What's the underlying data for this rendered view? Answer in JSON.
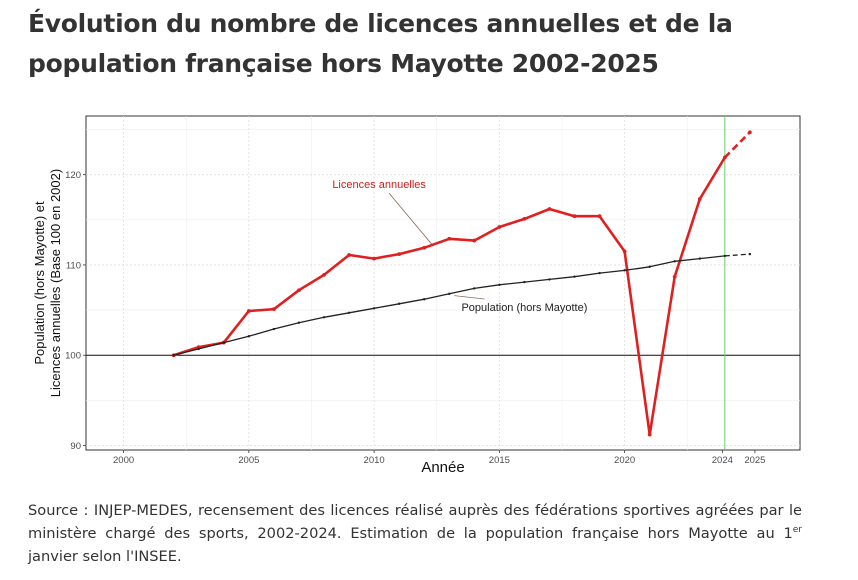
{
  "title": "Évolution du nombre de licences annuelles et de la population française hors Mayotte 2002-2025",
  "chart_data": {
    "type": "line",
    "xlabel": "Année",
    "ylabel_line1": "Population (hors Mayotte) et",
    "ylabel_line2": "Licences annuelles (Base 100 en 2002)",
    "xlim": [
      1998.5,
      2027
    ],
    "ylim": [
      89.5,
      126.5
    ],
    "x_ticks": [
      {
        "value": 2000,
        "label": "2000"
      },
      {
        "value": 2005,
        "label": "2005"
      },
      {
        "value": 2010,
        "label": "2010"
      },
      {
        "value": 2015,
        "label": "2015"
      },
      {
        "value": 2020,
        "label": "2020"
      },
      {
        "value": 2023.9,
        "label": "2024"
      },
      {
        "value": 2025.2,
        "label": "2025"
      }
    ],
    "y_ticks": [
      90,
      100,
      110,
      120
    ],
    "reference_hline": 100,
    "reference_vline": 2024,
    "grid": true,
    "series": [
      {
        "name": "Licences annuelles",
        "color": "#e02020",
        "solid_x": [
          2002,
          2003,
          2004,
          2005,
          2006,
          2007,
          2008,
          2009,
          2010,
          2011,
          2012,
          2013,
          2014,
          2015,
          2016,
          2017,
          2018,
          2019,
          2020,
          2021,
          2022,
          2023,
          2024
        ],
        "solid_y": [
          100.0,
          100.9,
          101.4,
          104.9,
          105.1,
          107.2,
          108.9,
          111.1,
          110.7,
          111.2,
          111.9,
          112.9,
          112.7,
          114.2,
          115.1,
          116.2,
          115.4,
          115.4,
          111.5,
          91.2,
          108.7,
          117.3,
          121.9
        ],
        "projected_x": [
          2024,
          2025
        ],
        "projected_y": [
          121.9,
          124.7
        ]
      },
      {
        "name": "Population (hors Mayotte)",
        "color": "#222222",
        "solid_x": [
          2002,
          2003,
          2004,
          2005,
          2006,
          2007,
          2008,
          2009,
          2010,
          2011,
          2012,
          2013,
          2014,
          2015,
          2016,
          2017,
          2018,
          2019,
          2020,
          2021,
          2022,
          2023,
          2024
        ],
        "solid_y": [
          100.0,
          100.7,
          101.4,
          102.1,
          102.9,
          103.6,
          104.2,
          104.7,
          105.2,
          105.7,
          106.2,
          106.8,
          107.4,
          107.8,
          108.1,
          108.4,
          108.7,
          109.1,
          109.4,
          109.8,
          110.4,
          110.7,
          111.0
        ],
        "projected_x": [
          2024,
          2025
        ],
        "projected_y": [
          111.0,
          111.2
        ]
      }
    ],
    "annotations": [
      {
        "text": "Licences annuelles",
        "color": "#cc2020",
        "x": 2010.2,
        "y": 118.5,
        "arrow_to_x": 2012.3,
        "arrow_to_y": 112.3
      },
      {
        "text": "Population (hors Mayotte)",
        "color": "#222222",
        "x": 2016.0,
        "y": 104.9,
        "arrow_to_x": 2013.2,
        "arrow_to_y": 106.6
      }
    ]
  },
  "source": {
    "part1": "Source : INJEP-MEDES, recensement des licences réalisé auprès des fédérations sportives agréées par le ministère chargé des sports, 2002-2024. Estimation de la population française hors Mayotte au 1",
    "superscript": "er",
    "part2": " janvier selon l'INSEE."
  }
}
